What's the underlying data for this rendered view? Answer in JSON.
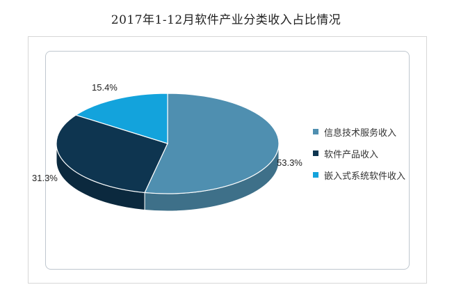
{
  "chart_data": {
    "type": "pie",
    "title": "2017年1-12月软件产业分类收入占比情况",
    "series": [
      {
        "name": "信息技术服务收入",
        "value": 53.3,
        "label": "53.3%",
        "color": "#4f8fb0"
      },
      {
        "name": "软件产品收入",
        "value": 31.3,
        "label": "31.3%",
        "color": "#0e3550"
      },
      {
        "name": "嵌入式系统软件收入",
        "value": 15.4,
        "label": "15.4%",
        "color": "#13a3dc"
      }
    ],
    "legend_position": "right",
    "style": "3d"
  }
}
